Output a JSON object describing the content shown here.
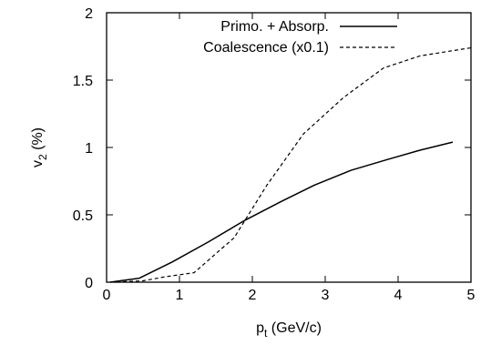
{
  "chart_data": {
    "type": "line",
    "title": "",
    "xlabel": {
      "main": "p",
      "sub": "t",
      "rest": " (GeV/c)"
    },
    "ylabel": {
      "main": "v",
      "sub": "2",
      "rest": " (%)"
    },
    "xlim": [
      0,
      5
    ],
    "ylim": [
      0,
      2
    ],
    "xticks": [
      0,
      1,
      2,
      3,
      4,
      5
    ],
    "xtick_labels": [
      "0",
      "1",
      "2",
      "3",
      "4",
      "5"
    ],
    "yticks": [
      0,
      0.5,
      1,
      1.5,
      2
    ],
    "ytick_labels": [
      "0",
      "0.5",
      "1",
      "1.5",
      "2"
    ],
    "grid": false,
    "legend_position": "top-left",
    "series": [
      {
        "name": "Primo. + Absorp.",
        "style": "solid",
        "x": [
          0.05,
          0.45,
          0.9,
          1.4,
          1.9,
          2.4,
          2.85,
          3.35,
          3.85,
          4.3,
          4.75
        ],
        "y": [
          0.0,
          0.03,
          0.15,
          0.3,
          0.46,
          0.6,
          0.72,
          0.83,
          0.91,
          0.98,
          1.04
        ]
      },
      {
        "name": "Coalescence (x0.1)",
        "style": "dashed",
        "x": [
          0.05,
          0.5,
          0.8,
          1.2,
          1.75,
          2.2,
          2.7,
          3.25,
          3.8,
          4.3,
          5.0
        ],
        "y": [
          0.0,
          0.01,
          0.04,
          0.07,
          0.33,
          0.72,
          1.1,
          1.37,
          1.59,
          1.68,
          1.74
        ]
      }
    ]
  }
}
